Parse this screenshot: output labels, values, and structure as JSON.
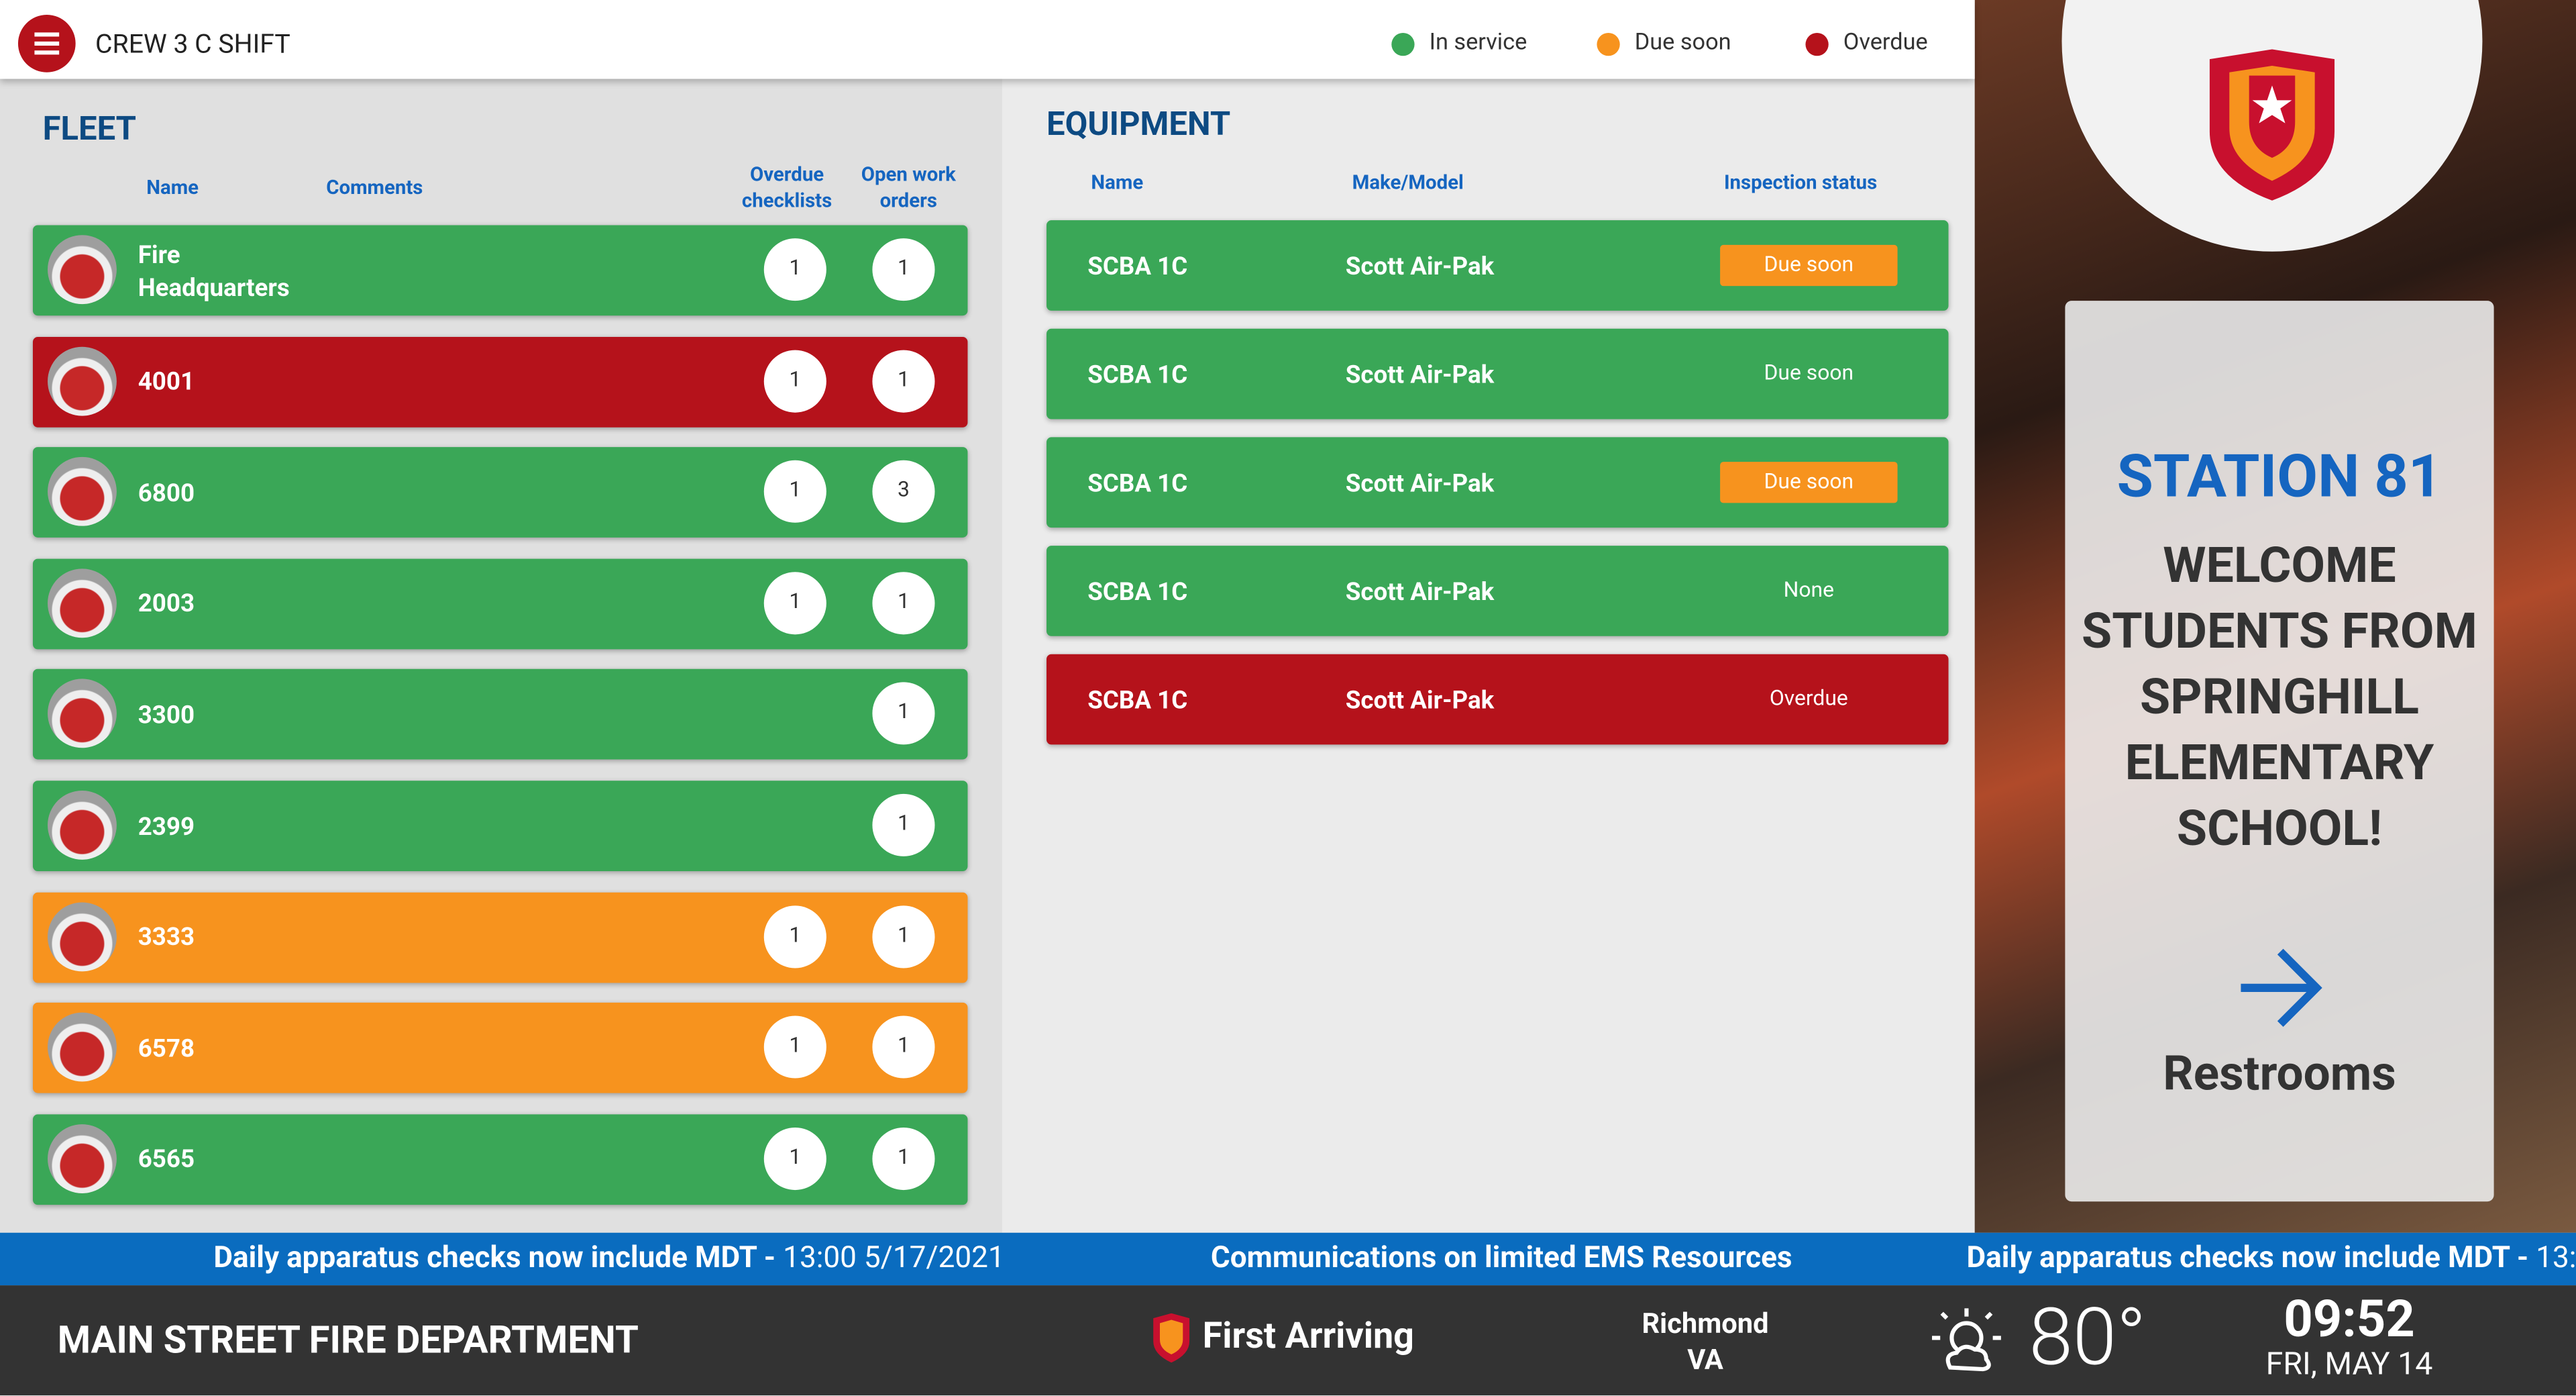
{
  "header": {
    "title": "CREW 3 C SHIFT",
    "legend": [
      {
        "label": "In service",
        "color": "#3aa757"
      },
      {
        "label": "Due soon",
        "color": "#f7931e"
      },
      {
        "label": "Overdue",
        "color": "#b5121b"
      }
    ]
  },
  "fleet": {
    "title": "FLEET",
    "columns": [
      "Name",
      "Comments",
      "Overdue checklists",
      "Open work orders"
    ],
    "rows": [
      {
        "name": "Fire Headquarters",
        "overdue_checklists": 1,
        "open_work_orders": 1,
        "color": "#3aa757"
      },
      {
        "name": "4001",
        "overdue_checklists": 1,
        "open_work_orders": 1,
        "color": "#b5121b"
      },
      {
        "name": "6800",
        "overdue_checklists": 1,
        "open_work_orders": 3,
        "color": "#3aa757"
      },
      {
        "name": "2003",
        "overdue_checklists": 1,
        "open_work_orders": 1,
        "color": "#3aa757"
      },
      {
        "name": "3300",
        "overdue_checklists": null,
        "open_work_orders": 1,
        "color": "#3aa757"
      },
      {
        "name": "2399",
        "overdue_checklists": null,
        "open_work_orders": 1,
        "color": "#3aa757"
      },
      {
        "name": "3333",
        "overdue_checklists": 1,
        "open_work_orders": 1,
        "color": "#f7931e"
      },
      {
        "name": "6578",
        "overdue_checklists": 1,
        "open_work_orders": 1,
        "color": "#f7931e"
      },
      {
        "name": "6565",
        "overdue_checklists": 1,
        "open_work_orders": 1,
        "color": "#3aa757"
      }
    ]
  },
  "equipment": {
    "title": "EQUIPMENT",
    "columns": [
      "Name",
      "Make/Model",
      "Inspection status"
    ],
    "rows": [
      {
        "name": "SCBA 1C",
        "make_model": "Scott Air-Pak",
        "inspection_status": "Due soon",
        "color": "#3aa757",
        "badge_color": "#f7931e"
      },
      {
        "name": "SCBA 1C",
        "make_model": "Scott Air-Pak",
        "inspection_status": "Due soon",
        "color": "#3aa757",
        "badge_color": null
      },
      {
        "name": "SCBA 1C",
        "make_model": "Scott Air-Pak",
        "inspection_status": "Due soon",
        "color": "#3aa757",
        "badge_color": "#f7931e"
      },
      {
        "name": "SCBA 1C",
        "make_model": "Scott Air-Pak",
        "inspection_status": "None",
        "color": "#3aa757",
        "badge_color": null
      },
      {
        "name": "SCBA 1C",
        "make_model": "Scott Air-Pak",
        "inspection_status": "Overdue",
        "color": "#b5121b",
        "badge_color": null
      }
    ]
  },
  "signage": {
    "station": "STATION 81",
    "message": "WELCOME STUDENTS FROM SPRINGHILL ELEMENTARY SCHOOL!",
    "direction": "Restrooms"
  },
  "ticker": [
    {
      "headline": "Daily apparatus checks now include MDT -",
      "time": "13:00 5/17/2021"
    },
    {
      "headline": "Communications on limited EMS Resources"
    }
  ],
  "footer": {
    "department": "MAIN STREET FIRE DEPARTMENT",
    "brand": "First Arriving",
    "city": "Richmond",
    "state": "VA",
    "temperature": "80°",
    "time": "09:52",
    "date": "FRI, MAY 14"
  }
}
